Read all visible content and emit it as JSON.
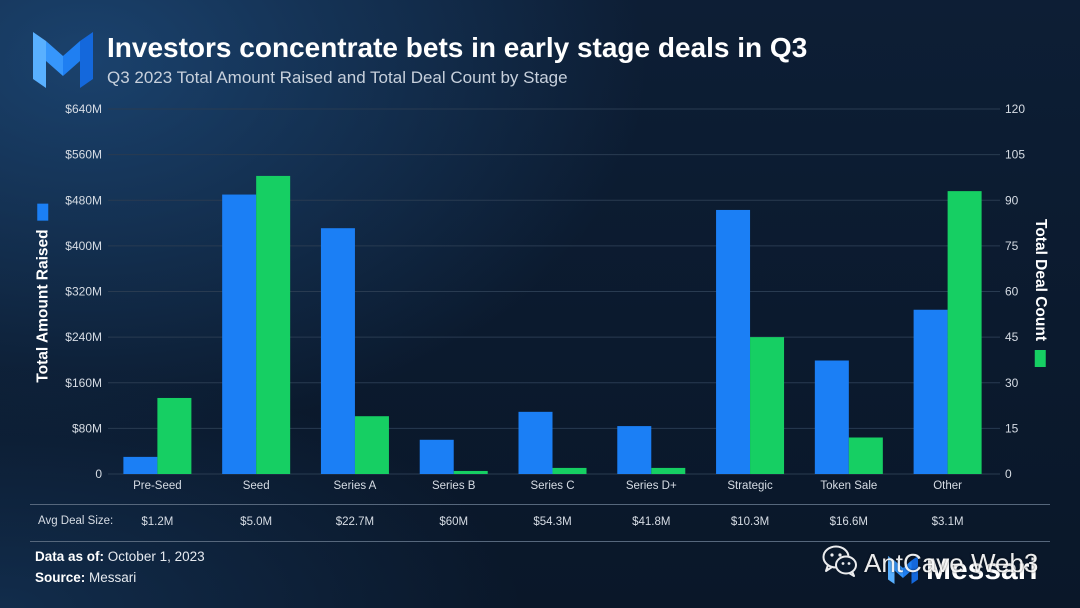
{
  "brand": {
    "logo_icon": "messari-logo-icon",
    "name": "Messari",
    "accent": "#1b7ff5"
  },
  "chart_data": {
    "type": "bar",
    "title": "Investors concentrate bets in early stage deals in Q3",
    "subtitle": "Q3 2023 Total Amount Raised and Total Deal Count by Stage",
    "categories": [
      "Pre-Seed",
      "Seed",
      "Series A",
      "Series B",
      "Series C",
      "Series D+",
      "Strategic",
      "Token Sale",
      "Other"
    ],
    "series": [
      {
        "name": "Total Amount Raised",
        "axis": "left",
        "color": "#1b7ff5",
        "values": [
          30,
          490,
          431,
          60,
          109,
          84,
          463,
          199,
          288
        ]
      },
      {
        "name": "Total Deal Count",
        "axis": "right",
        "color": "#16cf63",
        "values": [
          25,
          98,
          19,
          1,
          2,
          2,
          45,
          12,
          93
        ]
      }
    ],
    "ylim": [
      0,
      640
    ],
    "y2lim": [
      0,
      120
    ],
    "yticks": [
      "0",
      "$80M",
      "$160M",
      "$240M",
      "$320M",
      "$400M",
      "$480M",
      "$560M",
      "$640M"
    ],
    "y2ticks": [
      "0",
      "15",
      "30",
      "45",
      "60",
      "75",
      "90",
      "105",
      "120"
    ],
    "grid": true,
    "legend": "beside-axis-titles"
  },
  "avg_deal_size": {
    "label": "Avg Deal Size:",
    "values": [
      "$1.2M",
      "$5.0M",
      "$22.7M",
      "$60M",
      "$54.3M",
      "$41.8M",
      "$10.3M",
      "$16.6M",
      "$3.1M"
    ]
  },
  "footer": {
    "data_as_of_label": "Data as of:",
    "data_as_of_value": "October 1, 2023",
    "source_label": "Source:",
    "source_value": "Messari"
  },
  "watermark": {
    "icon": "wechat-icon",
    "text": "AntCave Web3"
  }
}
